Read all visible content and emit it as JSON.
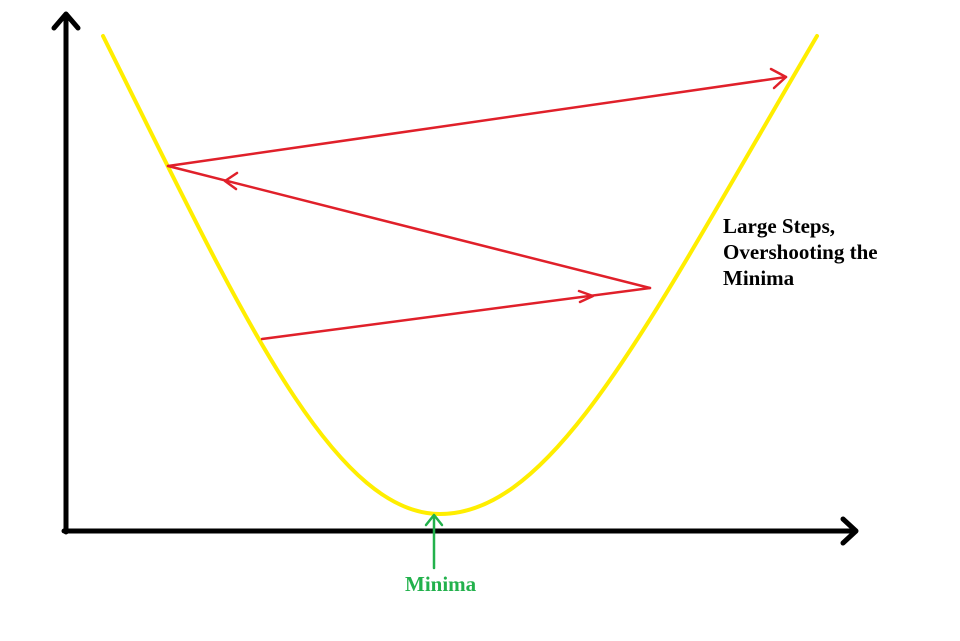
{
  "annotation": {
    "lines": [
      "Large Steps,",
      "Overshooting the",
      "Minima"
    ]
  },
  "minimum_label": "Minima",
  "colors": {
    "axes": "#000000",
    "curve": "#ffee00",
    "steps": "#e0202a",
    "minimum_marker": "#22b14c",
    "annotation_text": "#000000",
    "background": "#ffffff"
  }
}
